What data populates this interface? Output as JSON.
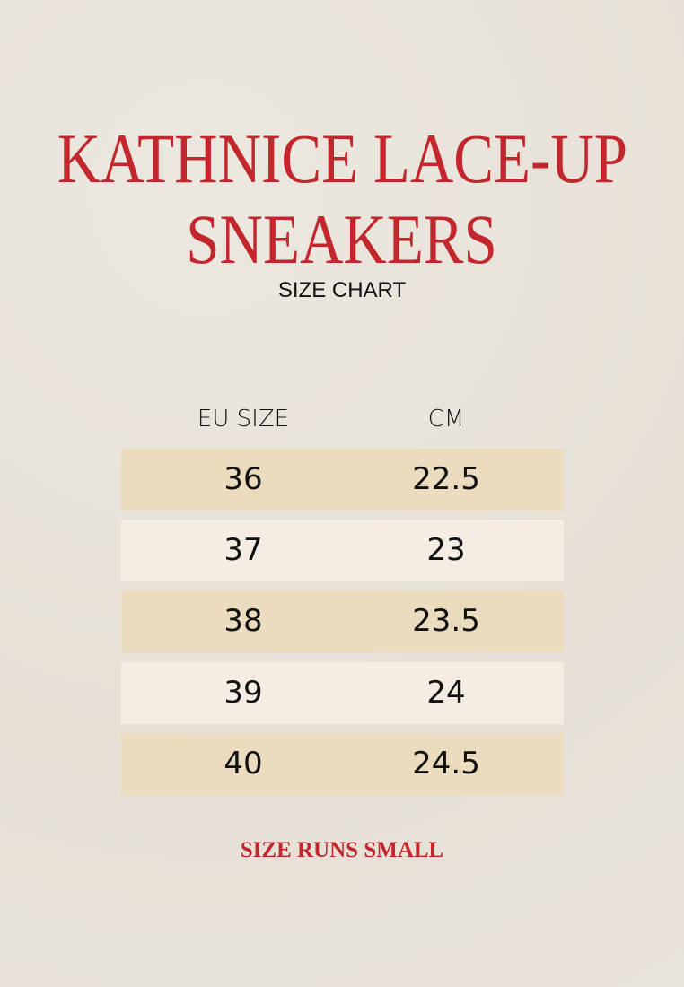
{
  "title_line1": "KATHNICE LACE-UP",
  "title_line2": "SNEAKERS",
  "subtitle": "SIZE CHART",
  "table": {
    "headers": [
      "EU SIZE",
      "CM"
    ],
    "rows": [
      [
        "36",
        "22.5"
      ],
      [
        "37",
        "23"
      ],
      [
        "38",
        "23.5"
      ],
      [
        "39",
        "24"
      ],
      [
        "40",
        "24.5"
      ]
    ]
  },
  "footer_note": "SIZE RUNS SMALL",
  "colors": {
    "accent": "#c1272d",
    "row_dark": "#ecdcbf",
    "row_light": "#f5ede3"
  }
}
